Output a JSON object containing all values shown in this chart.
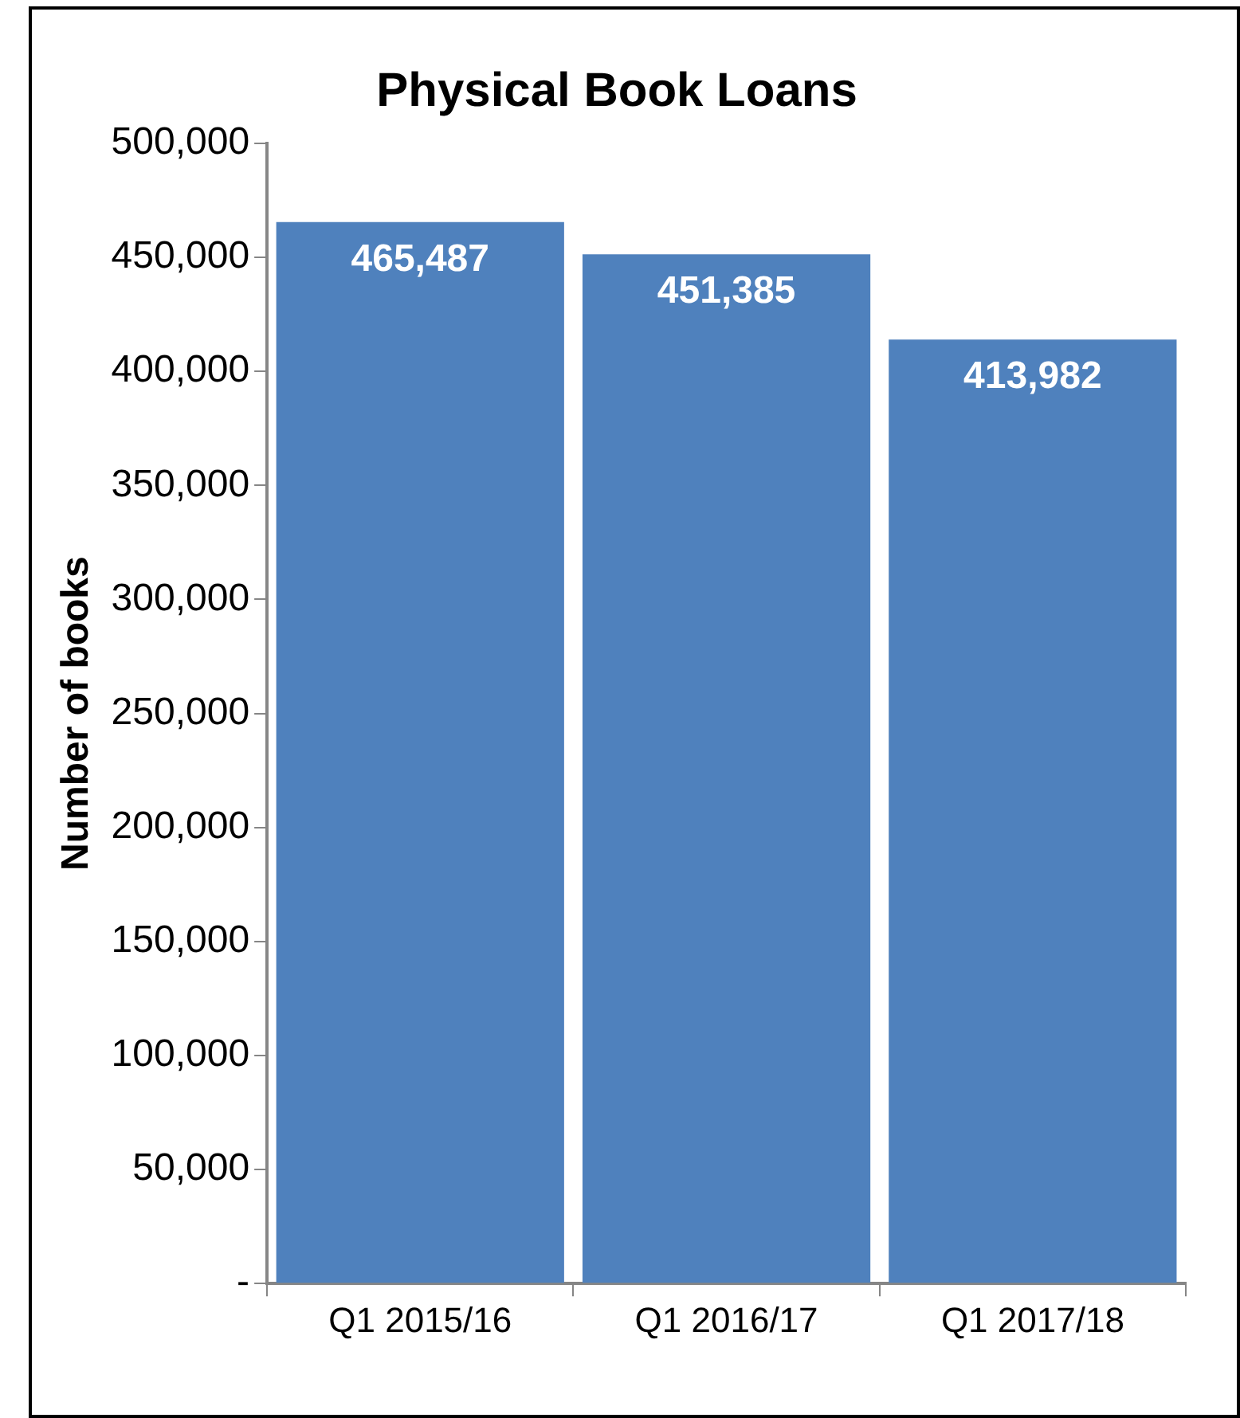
{
  "chart_data": {
    "type": "bar",
    "title": "Physical Book Loans",
    "ylabel": "Number of books",
    "categories": [
      "Q1 2015/16",
      "Q1 2016/17",
      "Q1 2017/18"
    ],
    "values": [
      465487,
      451385,
      413982
    ],
    "value_labels": [
      "465,487",
      "451,385",
      "413,982"
    ],
    "color": "#4f81bd",
    "ylim": [
      0,
      500000
    ],
    "yticks": [
      {
        "value": 0,
        "label": "-"
      },
      {
        "value": 50000,
        "label": "50,000"
      },
      {
        "value": 100000,
        "label": "100,000"
      },
      {
        "value": 150000,
        "label": "150,000"
      },
      {
        "value": 200000,
        "label": "200,000"
      },
      {
        "value": 250000,
        "label": "250,000"
      },
      {
        "value": 300000,
        "label": "300,000"
      },
      {
        "value": 350000,
        "label": "350,000"
      },
      {
        "value": 400000,
        "label": "400,000"
      },
      {
        "value": 450000,
        "label": "450,000"
      },
      {
        "value": 500000,
        "label": "500,000"
      }
    ],
    "grid": false,
    "legend": false
  }
}
